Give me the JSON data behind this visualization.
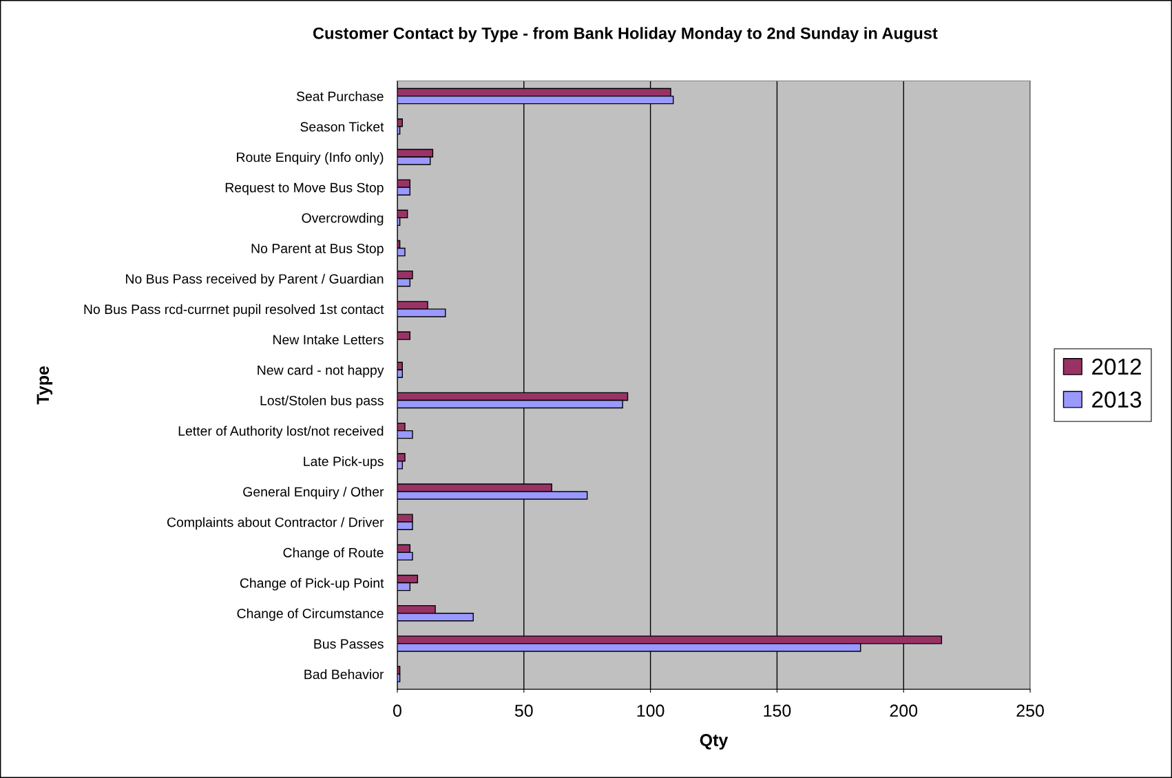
{
  "chart_data": {
    "type": "bar",
    "orientation": "horizontal",
    "title": "Customer Contact by Type - from Bank Holiday Monday to 2nd Sunday in August",
    "xlabel": "Qty",
    "ylabel": "Type",
    "categories": [
      "Seat Purchase",
      "Season Ticket",
      "Route Enquiry (Info only)",
      "Request to Move Bus Stop",
      "Overcrowding",
      "No Parent at Bus Stop",
      "No Bus Pass received by Parent / Guardian",
      "No Bus Pass rcd-currnet pupil resolved 1st contact",
      "New Intake Letters",
      "New card - not happy",
      "Lost/Stolen bus pass",
      "Letter of Authority lost/not received",
      "Late Pick-ups",
      "General Enquiry / Other",
      "Complaints about Contractor / Driver",
      "Change of Route",
      "Change of Pick-up Point",
      "Change of Circumstance",
      "Bus Passes",
      "Bad Behavior"
    ],
    "series": [
      {
        "name": "2012",
        "color": "#993366",
        "values": [
          108,
          2,
          14,
          5,
          4,
          1,
          6,
          12,
          5,
          2,
          91,
          3,
          3,
          61,
          6,
          5,
          8,
          15,
          215,
          1
        ]
      },
      {
        "name": "2013",
        "color": "#9999ff",
        "values": [
          109,
          1,
          13,
          5,
          1,
          3,
          5,
          19,
          null,
          2,
          89,
          6,
          2,
          75,
          6,
          6,
          5,
          30,
          183,
          1
        ]
      }
    ],
    "xlim": [
      0,
      250
    ],
    "xticks": [
      0,
      50,
      100,
      150,
      200,
      250
    ],
    "grid": "x",
    "legend": "right"
  }
}
